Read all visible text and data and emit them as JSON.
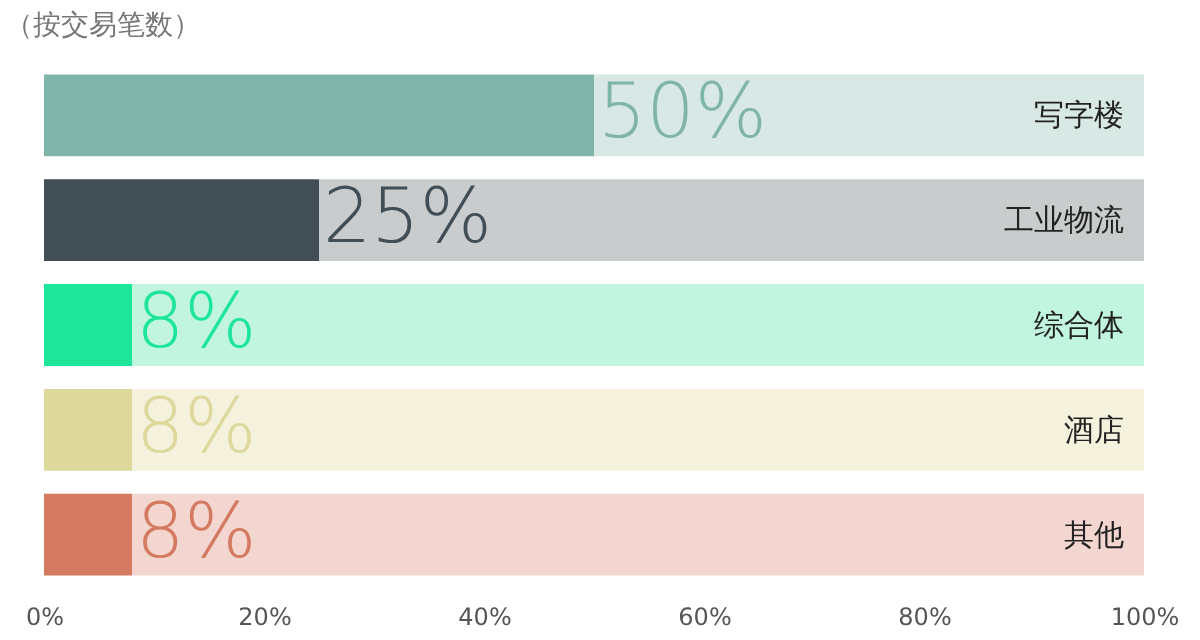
{
  "chart_data": {
    "type": "bar",
    "orientation": "horizontal",
    "stacked": true,
    "title": "（按交易笔数）",
    "categories": [
      "写字楼",
      "工业物流",
      "综合体",
      "酒店",
      "其他"
    ],
    "series": [
      {
        "colors": [
          "#7fb5a8",
          "#414e55",
          "#1de59a",
          "#ddd89c",
          "#d47a60"
        ],
        "values": [
          50,
          25,
          8,
          8,
          8
        ],
        "value_labels": [
          "50%",
          "25%",
          "8%",
          "8%",
          "8%"
        ]
      },
      {
        "colors": [
          "#d8e8e4",
          "#c9cccd",
          "#c2f5e0",
          "#f4f2dc",
          "#f2d6cf"
        ],
        "values": [
          50,
          75,
          92,
          92,
          92
        ]
      }
    ],
    "xlim": [
      0,
      100
    ],
    "xticks": [
      {
        "value": 0,
        "label": "0%"
      },
      {
        "value": 20,
        "label": "20%"
      },
      {
        "value": 40,
        "label": "40%"
      },
      {
        "value": 60,
        "label": "60%"
      },
      {
        "value": 80,
        "label": "80%"
      },
      {
        "value": 100,
        "label": "100%"
      }
    ],
    "grid": false
  }
}
